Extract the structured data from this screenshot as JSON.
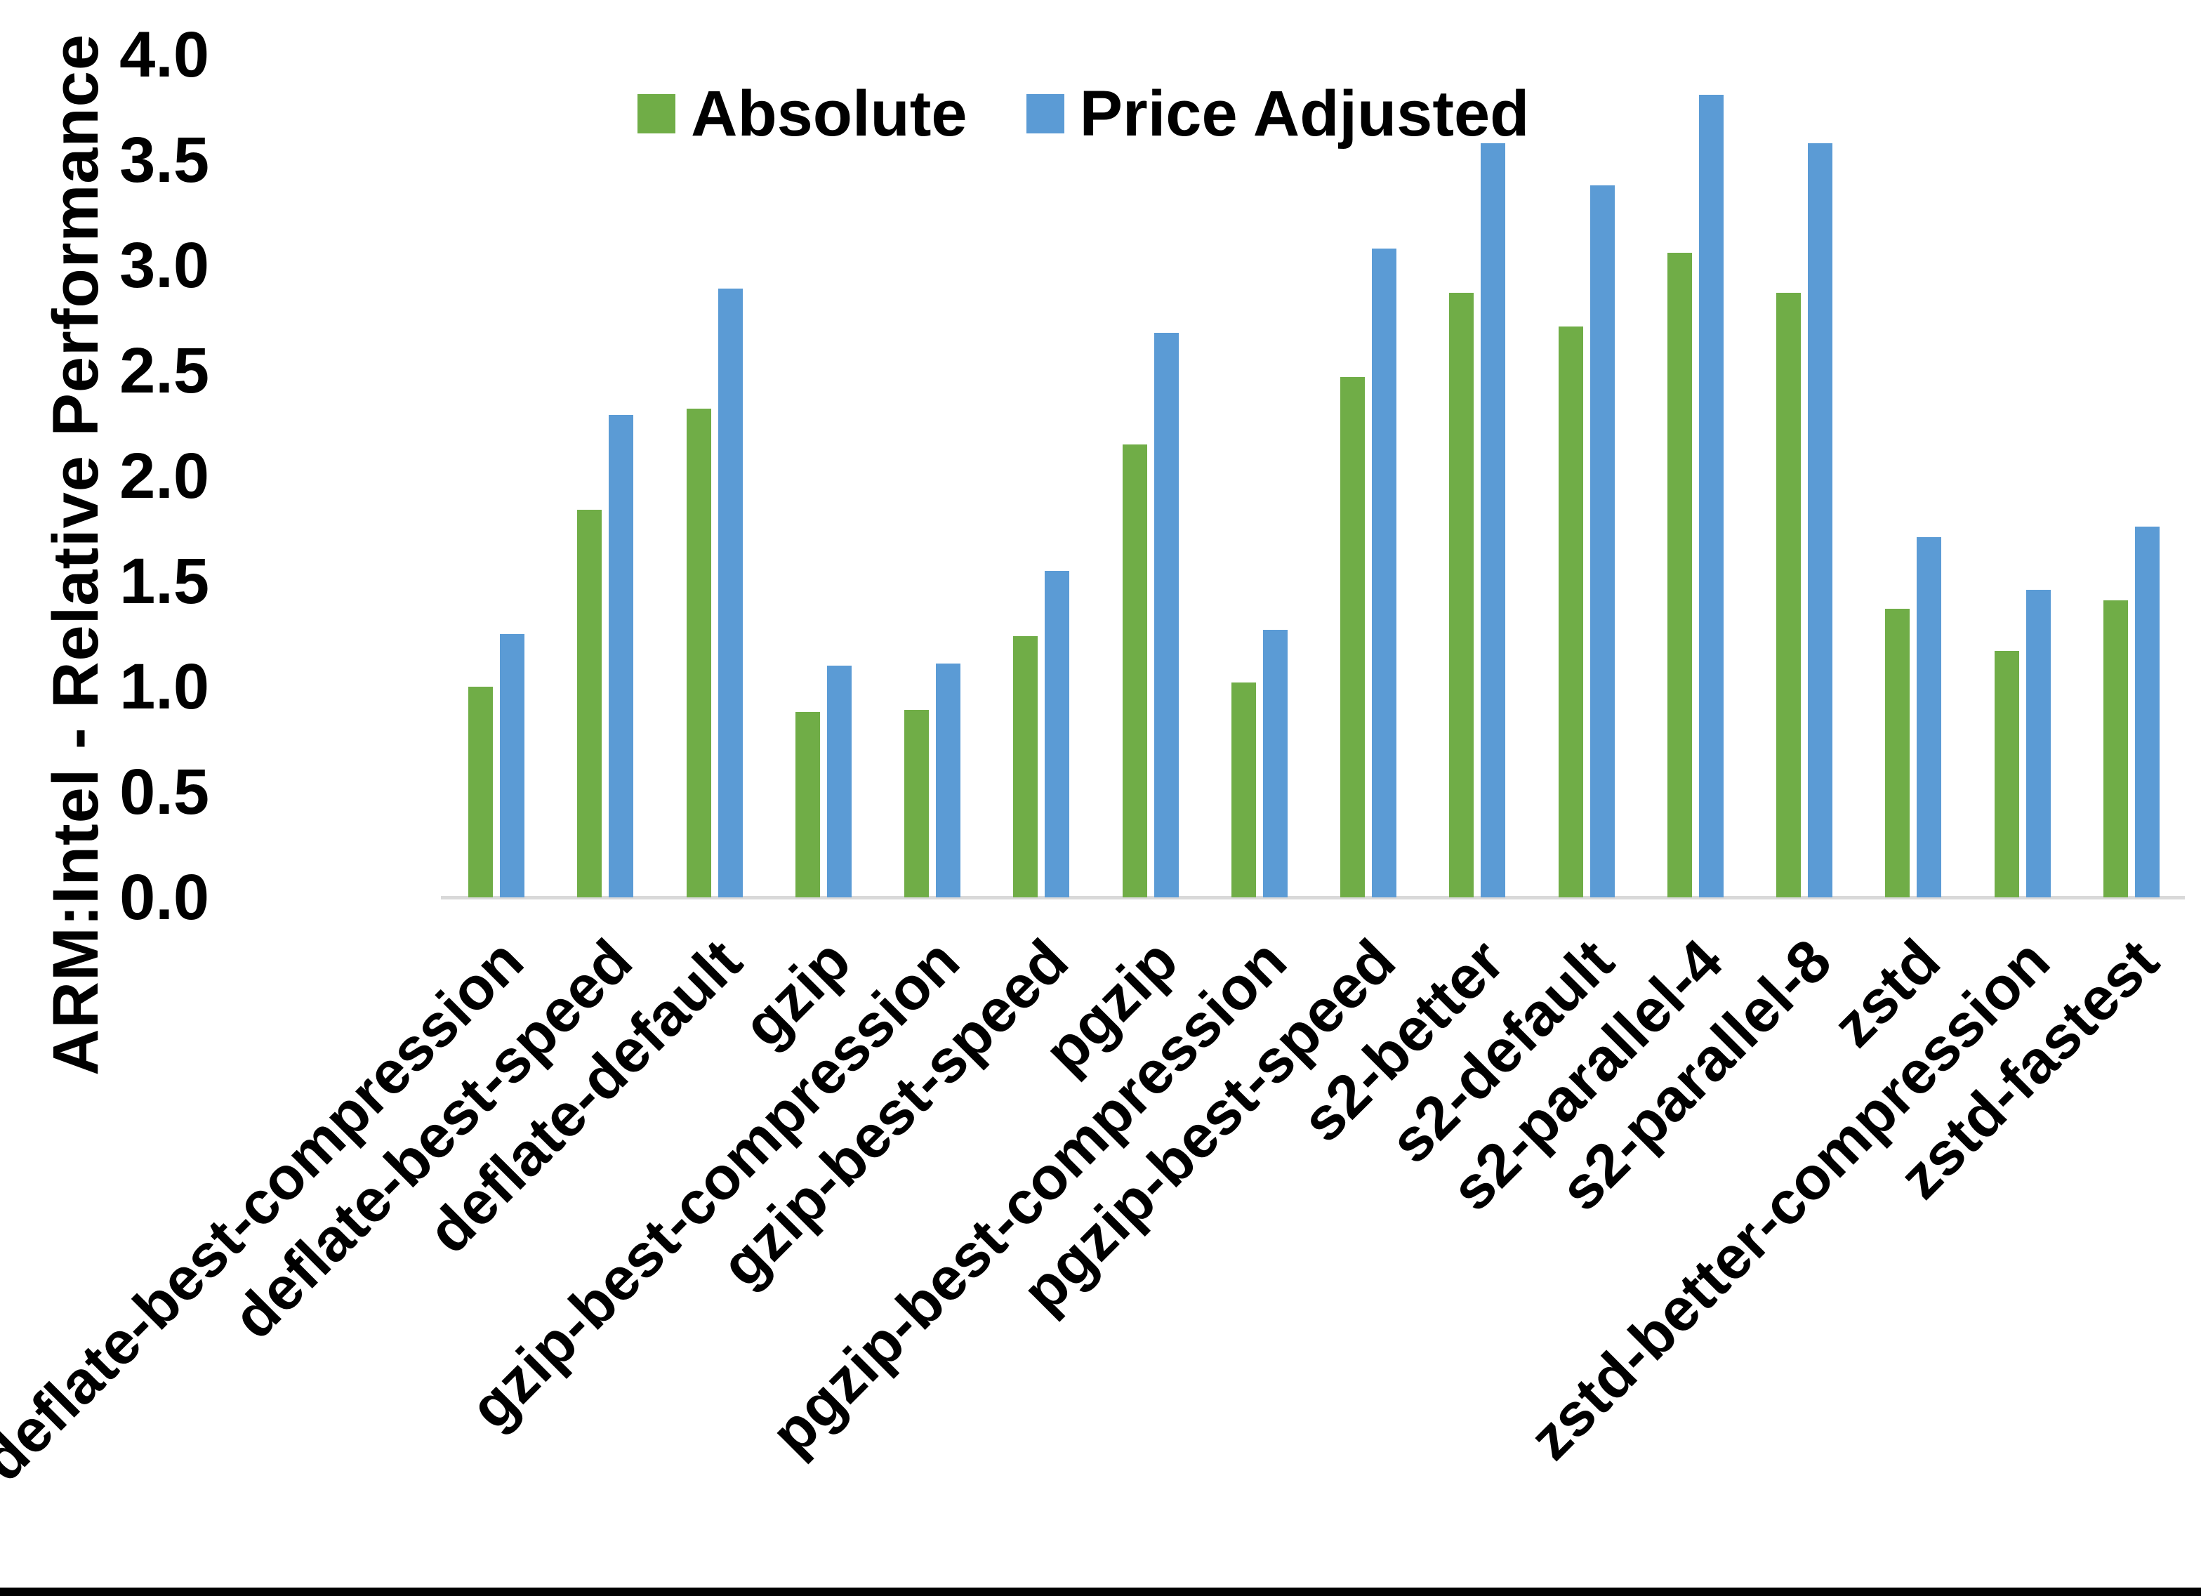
{
  "chart_data": {
    "type": "bar",
    "title": "",
    "ylabel": "ARM:Intel - Relative Performance",
    "xlabel": "",
    "categories": [
      "deflate-best-compression",
      "deflate-best-speed",
      "deflate-default",
      "gzip",
      "gzip-best-compression",
      "gzip-best-speed",
      "pgzip",
      "pgzip-best-compression",
      "pgzip-best-speed",
      "s2-better",
      "s2-default",
      "s2-parallel-4",
      "s2-parallel-8",
      "zstd",
      "zstd-better-compression",
      "zstd-fastest"
    ],
    "series": [
      {
        "name": "Absolute",
        "color": "#70AD47",
        "values": [
          1.0,
          1.84,
          2.32,
          0.88,
          0.89,
          1.24,
          2.15,
          1.02,
          2.47,
          2.87,
          2.71,
          3.06,
          2.87,
          1.37,
          1.17,
          1.41
        ]
      },
      {
        "name": "Price Adjusted",
        "color": "#5B9BD5",
        "values": [
          1.25,
          2.29,
          2.89,
          1.1,
          1.11,
          1.55,
          2.68,
          1.27,
          3.08,
          3.58,
          3.38,
          3.81,
          3.58,
          1.71,
          1.46,
          1.76
        ]
      }
    ],
    "ylim": [
      0.0,
      4.0
    ],
    "yticks": [
      "0.0",
      "0.5",
      "1.0",
      "1.5",
      "2.0",
      "2.5",
      "3.0",
      "3.5",
      "4.0"
    ],
    "grid": false,
    "legend_position": "top-center",
    "axis_line_color": "#d9d9d9",
    "text_color": "#000000"
  }
}
